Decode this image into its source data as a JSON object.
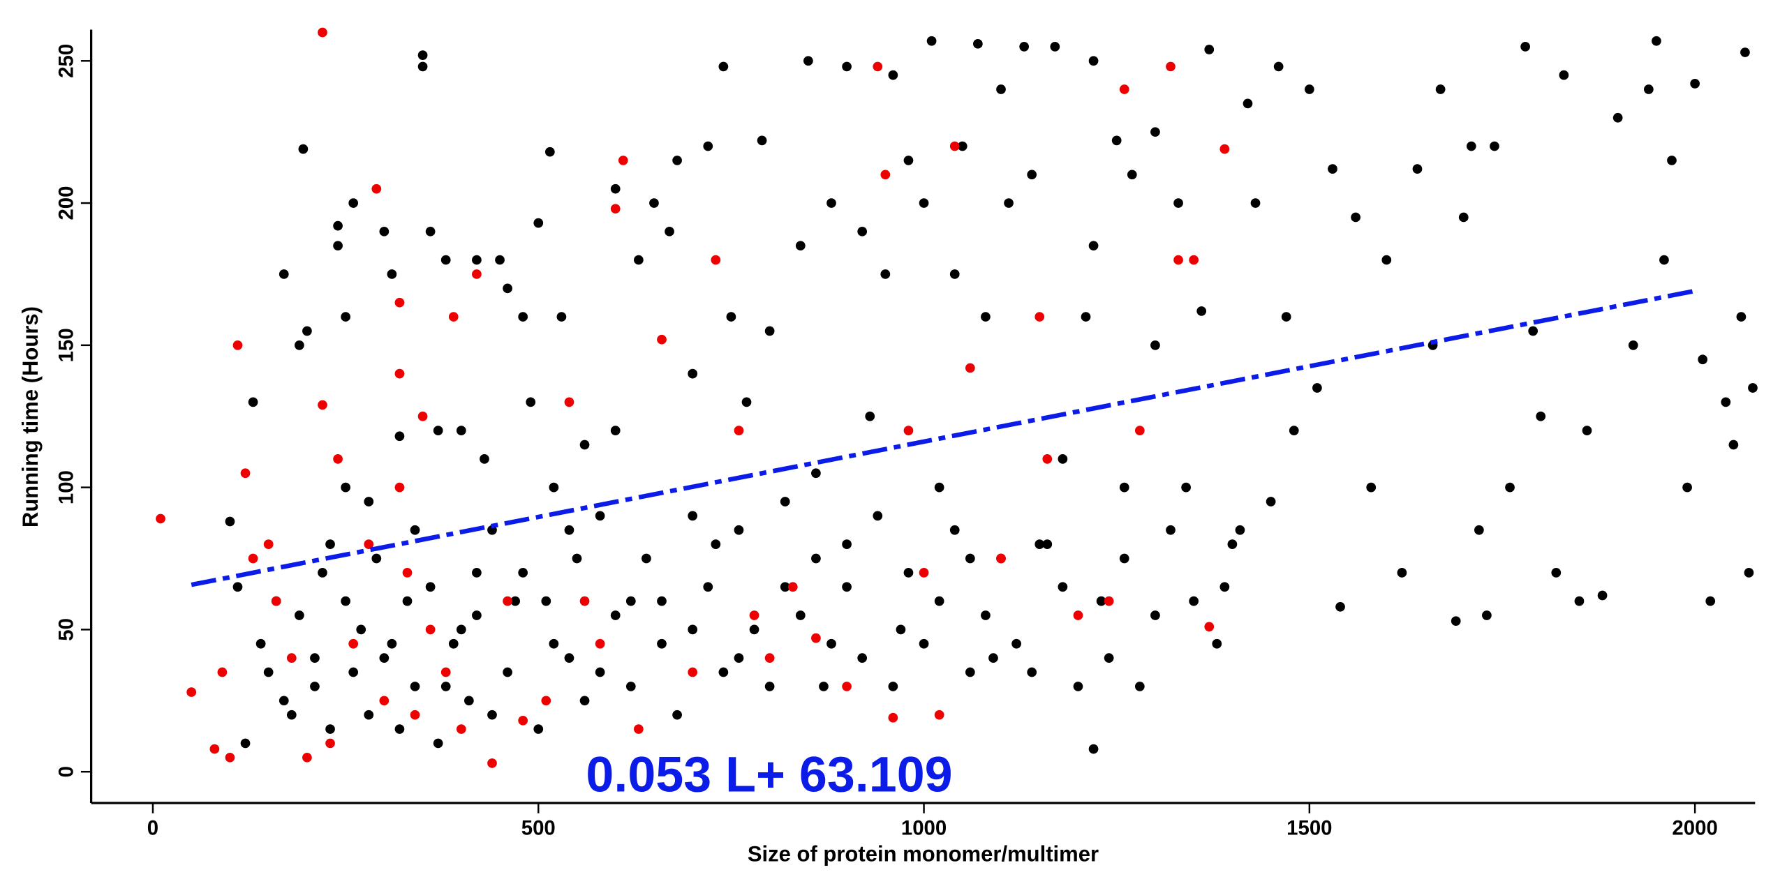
{
  "chart_data": {
    "type": "scatter",
    "x_label": "Size of protein monomer/multimer",
    "y_label": "Running time (Hours)",
    "xlim": [
      -80,
      2078
    ],
    "ylim": [
      -11,
      261
    ],
    "xticks": [
      0,
      500,
      1000,
      1500,
      2000
    ],
    "yticks": [
      0,
      50,
      100,
      150,
      200,
      250
    ],
    "grid": false,
    "series": [
      {
        "color": "#000000",
        "x": [
          100,
          110,
          120,
          130,
          140,
          160,
          170,
          180,
          190,
          195,
          200,
          210,
          220,
          230,
          240,
          240,
          250,
          250,
          260,
          270,
          280,
          300,
          300,
          310,
          320,
          330,
          340,
          350,
          350,
          360,
          370,
          380,
          380,
          400,
          400,
          420,
          420,
          430,
          440,
          450,
          460,
          470,
          480,
          490,
          500,
          510,
          515,
          520,
          530,
          540,
          550,
          560,
          580,
          600,
          600,
          620,
          630,
          650,
          660,
          670,
          680,
          700,
          700,
          720,
          730,
          740,
          750,
          760,
          770,
          790,
          800,
          820,
          840,
          850,
          860,
          870,
          880,
          900,
          900,
          920,
          930,
          950,
          960,
          970,
          980,
          1000,
          1010,
          1020,
          1040,
          1050,
          1060,
          1070,
          1080,
          1090,
          1100,
          1110,
          1130,
          1140,
          1150,
          1170,
          1180,
          1200,
          1210,
          1220,
          1220,
          1220,
          1230,
          1250,
          1260,
          1270,
          1280,
          1300,
          1300,
          1320,
          1330,
          1350,
          1360,
          1370,
          1380,
          1400,
          1420,
          1430,
          1450,
          1460,
          1470,
          1480,
          1500,
          1510,
          1530,
          1540,
          1560,
          1580,
          1600,
          1620,
          1640,
          1660,
          1670,
          1690,
          1700,
          1710,
          1720,
          1730,
          1740,
          1760,
          1780,
          1790,
          1800,
          1820,
          1830,
          1850,
          1860,
          1880,
          1900,
          1920,
          1940,
          1950,
          1960,
          1970,
          1990,
          2000,
          2010,
          2020,
          2040,
          2050,
          2060,
          2070,
          2075,
          2065,
          150,
          170,
          190,
          210,
          230,
          250,
          260,
          280,
          290,
          310,
          320,
          340,
          360,
          370,
          390,
          410,
          420,
          440,
          460,
          480,
          500,
          520,
          540,
          560,
          580,
          600,
          620,
          640,
          660,
          680,
          700,
          720,
          740,
          760,
          780,
          800,
          820,
          840,
          860,
          880,
          900,
          920,
          940,
          960,
          980,
          1000,
          1020,
          1040,
          1060,
          1080,
          1100,
          1120,
          1140,
          1160,
          1180,
          1240,
          1260,
          1300,
          1340,
          1390,
          1410
        ],
        "values": [
          88,
          65,
          10,
          130,
          45,
          60,
          175,
          20,
          150,
          219,
          155,
          30,
          70,
          80,
          185,
          192,
          100,
          160,
          200,
          50,
          95,
          40,
          190,
          175,
          118,
          60,
          85,
          252,
          248,
          190,
          120,
          180,
          30,
          120,
          50,
          70,
          180,
          110,
          20,
          180,
          170,
          60,
          160,
          130,
          193,
          60,
          218,
          100,
          160,
          40,
          75,
          115,
          35,
          205,
          120,
          60,
          180,
          200,
          60,
          190,
          215,
          140,
          50,
          220,
          80,
          248,
          160,
          40,
          130,
          222,
          155,
          65,
          185,
          250,
          105,
          30,
          200,
          248,
          80,
          190,
          125,
          175,
          245,
          50,
          215,
          200,
          257,
          100,
          175,
          220,
          75,
          256,
          160,
          40,
          240,
          200,
          255,
          210,
          80,
          255,
          110,
          30,
          160,
          250,
          8,
          185,
          60,
          222,
          100,
          210,
          30,
          150,
          225,
          85,
          200,
          60,
          162,
          254,
          45,
          80,
          235,
          200,
          95,
          248,
          160,
          120,
          240,
          135,
          212,
          58,
          195,
          100,
          180,
          70,
          212,
          150,
          240,
          53,
          195,
          220,
          85,
          55,
          220,
          100,
          255,
          155,
          125,
          70,
          245,
          60,
          120,
          62,
          230,
          150,
          240,
          257,
          180,
          215,
          100,
          242,
          145,
          60,
          130,
          115,
          160,
          70,
          135,
          253,
          35,
          25,
          55,
          40,
          15,
          60,
          35,
          20,
          75,
          45,
          15,
          30,
          65,
          10,
          45,
          25,
          55,
          85,
          35,
          70,
          15,
          45,
          85,
          25,
          90,
          55,
          30,
          75,
          45,
          20,
          90,
          65,
          35,
          85,
          50,
          30,
          95,
          55,
          75,
          45,
          65,
          40,
          90,
          30,
          70,
          45,
          60,
          85,
          35,
          55,
          75,
          45,
          35,
          80,
          65,
          40,
          75,
          55,
          100,
          65,
          85
        ]
      },
      {
        "color": "#ee0000",
        "x": [
          10,
          50,
          80,
          90,
          100,
          110,
          120,
          130,
          150,
          160,
          180,
          200,
          220,
          220,
          230,
          240,
          260,
          280,
          290,
          300,
          320,
          320,
          320,
          330,
          340,
          350,
          360,
          380,
          390,
          400,
          420,
          440,
          460,
          480,
          510,
          540,
          560,
          580,
          600,
          610,
          630,
          660,
          700,
          730,
          760,
          780,
          800,
          830,
          860,
          900,
          940,
          950,
          960,
          980,
          1000,
          1020,
          1040,
          1060,
          1100,
          1150,
          1160,
          1200,
          1240,
          1260,
          1280,
          1320,
          1330,
          1350,
          1370,
          1390
        ],
        "values": [
          89,
          28,
          8,
          35,
          5,
          150,
          105,
          75,
          80,
          60,
          40,
          5,
          260,
          129,
          10,
          110,
          45,
          80,
          205,
          25,
          165,
          100,
          140,
          70,
          20,
          125,
          50,
          35,
          160,
          15,
          175,
          3,
          60,
          18,
          25,
          130,
          60,
          45,
          198,
          215,
          15,
          152,
          35,
          180,
          120,
          55,
          40,
          65,
          47,
          30,
          248,
          210,
          19,
          120,
          70,
          20,
          220,
          142,
          75,
          160,
          110,
          55,
          60,
          240,
          120,
          248,
          180,
          180,
          51,
          219
        ]
      }
    ],
    "fit": {
      "x": [
        50,
        2000
      ],
      "values": [
        65.759,
        169.109
      ],
      "color": "#0b1be8",
      "label": "0.053 L+ 63.109"
    }
  }
}
